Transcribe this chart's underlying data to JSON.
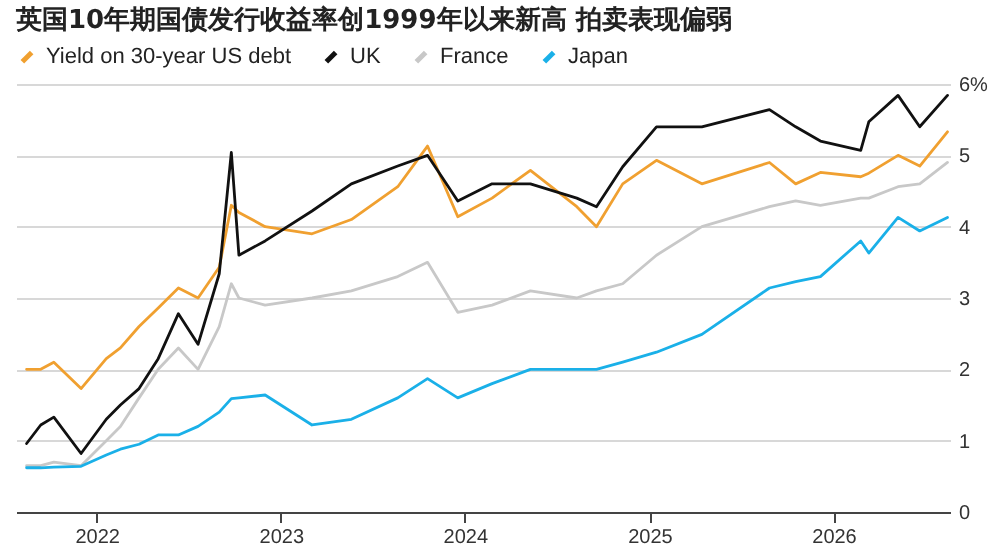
{
  "chart_data": {
    "type": "line",
    "title": "英国10年期国债发行收益率创1999年以来新高 拍卖表现偏弱",
    "x": [
      "2021-08-15",
      "2021-09-12",
      "2021-10-08",
      "2021-12-01",
      "2022-01-20",
      "2022-02-17",
      "2022-03-26",
      "2022-05-03",
      "2022-06-12",
      "2022-07-21",
      "2022-09-01",
      "2022-09-25",
      "2022-10-10",
      "2022-12-01",
      "2023-03-04",
      "2023-05-21",
      "2023-08-21",
      "2023-10-19",
      "2023-12-18",
      "2024-02-24",
      "2024-05-10",
      "2024-08-10",
      "2024-09-18",
      "2024-11-09",
      "2025-01-15",
      "2025-04-15",
      "2025-08-27",
      "2025-10-18",
      "2025-12-06",
      "2026-02-24",
      "2026-03-12",
      "2026-05-09",
      "2026-06-21",
      "2026-08-15"
    ],
    "series": [
      {
        "name": "Yield on 30-year US debt",
        "color": "#f0a030",
        "values": [
          2.0,
          2.0,
          2.1,
          1.73,
          2.15,
          2.3,
          2.6,
          2.86,
          3.14,
          3.0,
          3.43,
          4.3,
          4.2,
          4.0,
          3.9,
          4.1,
          4.56,
          5.13,
          4.14,
          4.4,
          4.79,
          4.28,
          4.0,
          4.6,
          4.93,
          4.6,
          4.9,
          4.6,
          4.76,
          4.7,
          4.75,
          5.0,
          4.85,
          5.33
        ]
      },
      {
        "name": "UK",
        "color": "#111111",
        "values": [
          0.96,
          1.22,
          1.33,
          0.82,
          1.3,
          1.5,
          1.73,
          2.15,
          2.78,
          2.35,
          3.34,
          5.04,
          3.6,
          3.8,
          4.22,
          4.6,
          4.85,
          5.0,
          4.36,
          4.6,
          4.6,
          4.4,
          4.28,
          4.84,
          5.4,
          5.4,
          5.64,
          5.4,
          5.2,
          5.07,
          5.47,
          5.84,
          5.4,
          5.84
        ]
      },
      {
        "name": "France",
        "color": "#c8c8c8",
        "values": [
          0.65,
          0.65,
          0.7,
          0.65,
          1.0,
          1.2,
          1.6,
          2.0,
          2.3,
          2.0,
          2.6,
          3.2,
          3.0,
          2.9,
          3.0,
          3.1,
          3.3,
          3.5,
          2.8,
          2.9,
          3.1,
          3.0,
          3.1,
          3.2,
          3.6,
          4.0,
          4.28,
          4.36,
          4.3,
          4.4,
          4.4,
          4.56,
          4.6,
          4.9
        ]
      },
      {
        "name": "Japan",
        "color": "#1ab0e8",
        "values": [
          0.62,
          0.62,
          0.63,
          0.64,
          0.8,
          0.88,
          0.95,
          1.08,
          1.08,
          1.2,
          1.4,
          1.59,
          1.6,
          1.64,
          1.22,
          1.3,
          1.6,
          1.87,
          1.6,
          1.8,
          2.0,
          2.0,
          2.0,
          2.1,
          2.24,
          2.49,
          3.14,
          3.23,
          3.3,
          3.8,
          3.63,
          4.13,
          3.94,
          4.13
        ]
      }
    ],
    "xlim": [
      "2021-07-25",
      "2026-08-20"
    ],
    "xticks": [
      "2022",
      "2023",
      "2024",
      "2025",
      "2026"
    ],
    "ylim": [
      0,
      6
    ],
    "yticks": [
      0,
      1,
      2,
      3,
      4,
      5,
      {
        "value": 6,
        "label": "6%"
      }
    ],
    "grid": "y",
    "legend": "top left",
    "marker": "none"
  }
}
